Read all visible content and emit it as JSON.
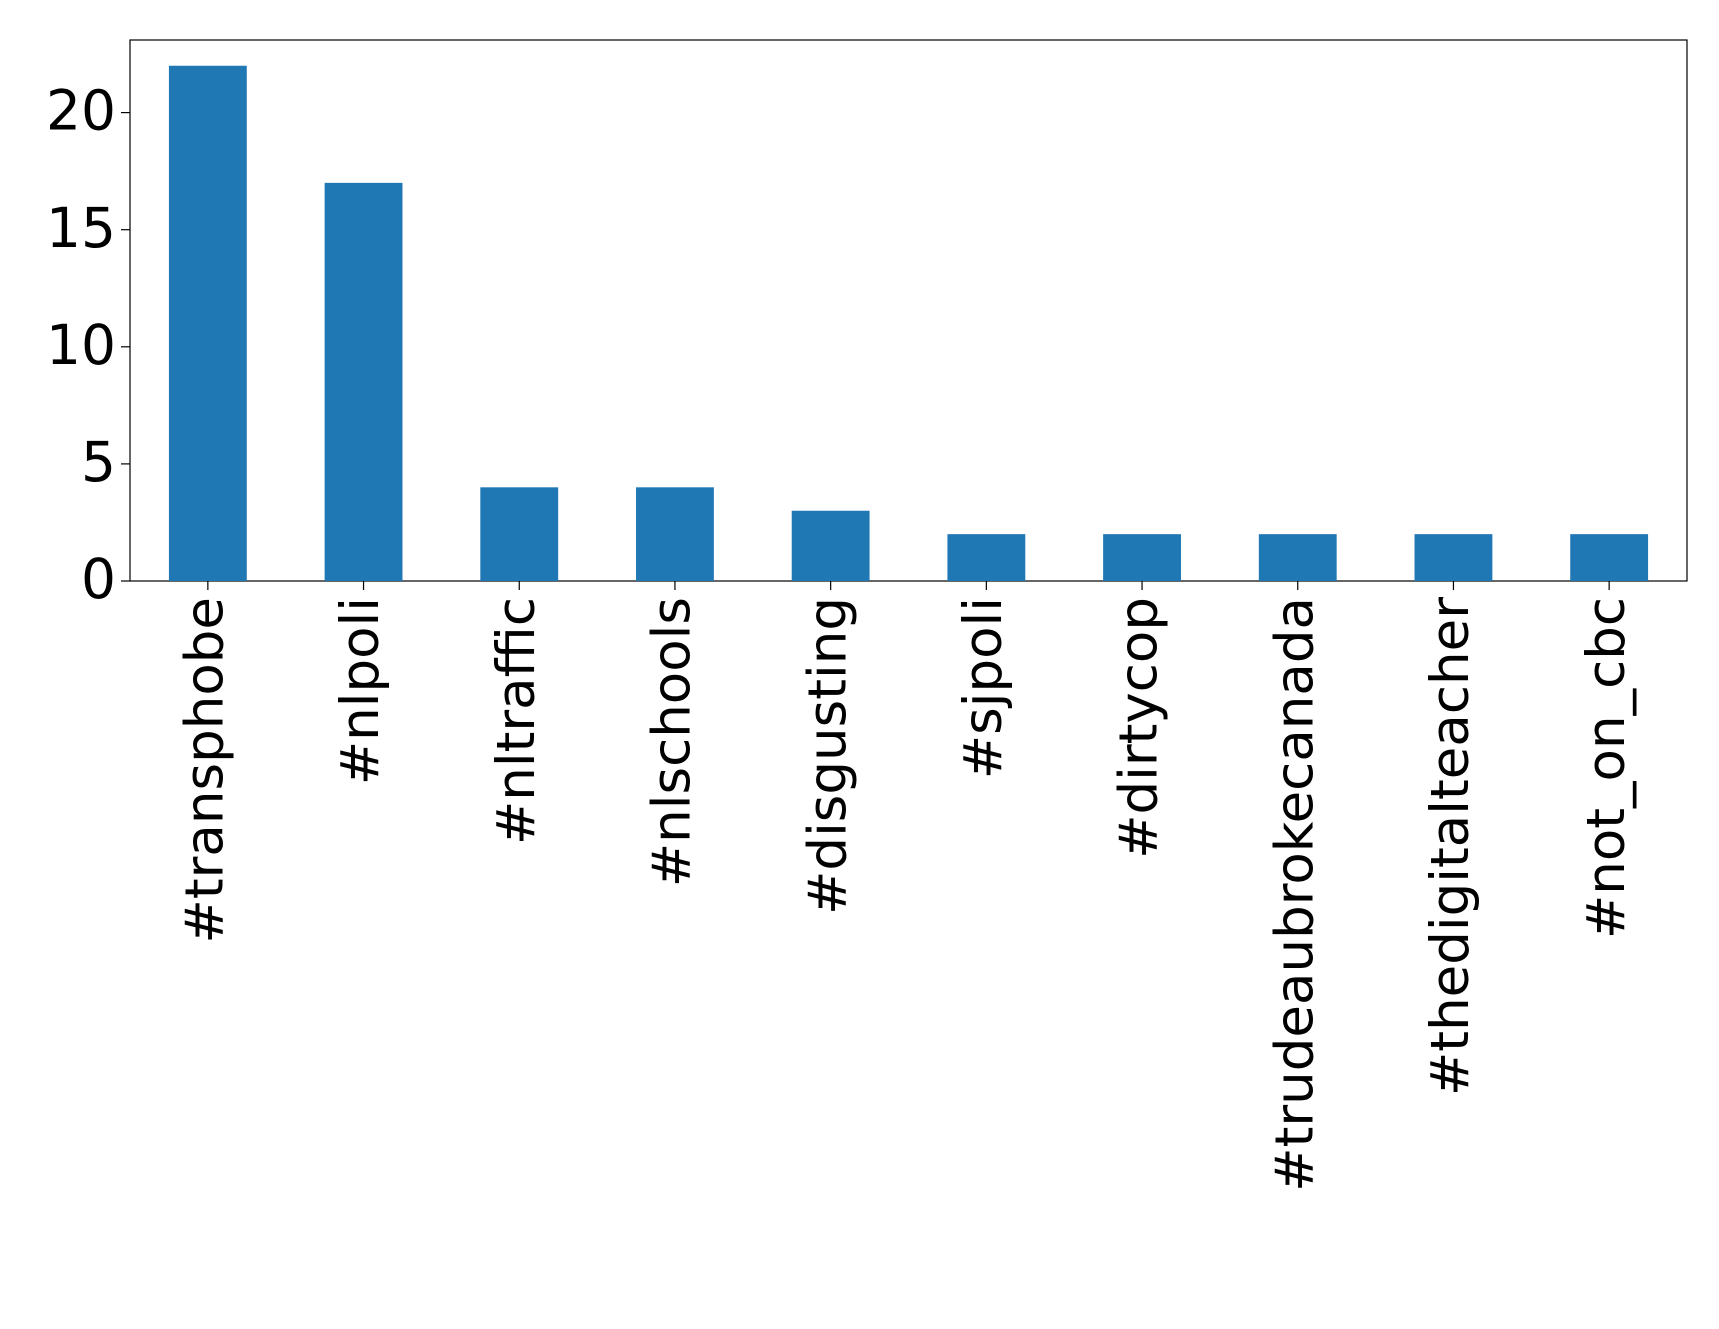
{
  "chart_data": {
    "type": "bar",
    "categories": [
      "#transphobe",
      "#nlpoli",
      "#nltraffic",
      "#nlschools",
      "#disgusting",
      "#sjpoli",
      "#dirtycop",
      "#trudeaubrokecanada",
      "#thedigitalteacher",
      "#not_on_cbc"
    ],
    "values": [
      22,
      17,
      4,
      4,
      3,
      2,
      2,
      2,
      2,
      2
    ],
    "color": "#1f77b4",
    "ylim": [
      0,
      23.1
    ],
    "yticks": [
      0,
      5,
      10,
      15,
      20
    ],
    "grid": false
  }
}
